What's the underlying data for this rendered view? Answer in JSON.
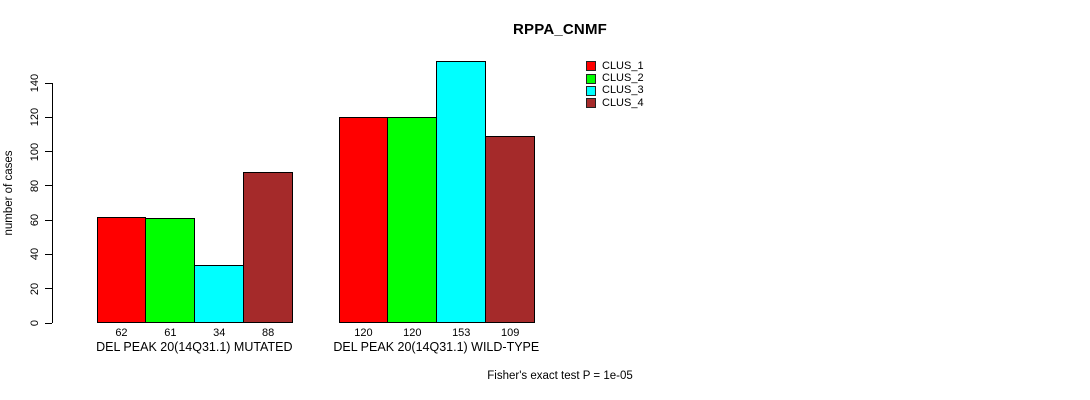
{
  "chart_data": {
    "type": "bar",
    "title": "RPPA_CNMF",
    "ylabel": "number of cases",
    "xlabel": "",
    "categories": [
      "DEL PEAK 20(14Q31.1) MUTATED",
      "DEL PEAK 20(14Q31.1) WILD-TYPE"
    ],
    "series": [
      {
        "name": "CLUS_1",
        "color": "#ff0000",
        "values": [
          62,
          120
        ]
      },
      {
        "name": "CLUS_2",
        "color": "#00ff00",
        "values": [
          61,
          120
        ]
      },
      {
        "name": "CLUS_3",
        "color": "#00ffff",
        "values": [
          34,
          153
        ]
      },
      {
        "name": "CLUS_4",
        "color": "#a52a2a",
        "values": [
          88,
          109
        ]
      }
    ],
    "bar_value_labels": [
      [
        "62",
        "61",
        "34",
        "88"
      ],
      [
        "120",
        "120",
        "153",
        "109"
      ]
    ],
    "yticks": [
      0,
      20,
      40,
      60,
      80,
      100,
      120,
      140
    ],
    "ylim": [
      0,
      140
    ],
    "grid": false,
    "legend_position": "top-right",
    "legend_entries": [
      "CLUS_1",
      "CLUS_2",
      "CLUS_3",
      "CLUS_4"
    ],
    "annotation": "Fisher's exact test P = 1e-05",
    "bar_border_color": "#000000",
    "background_color": "#ffffff"
  }
}
